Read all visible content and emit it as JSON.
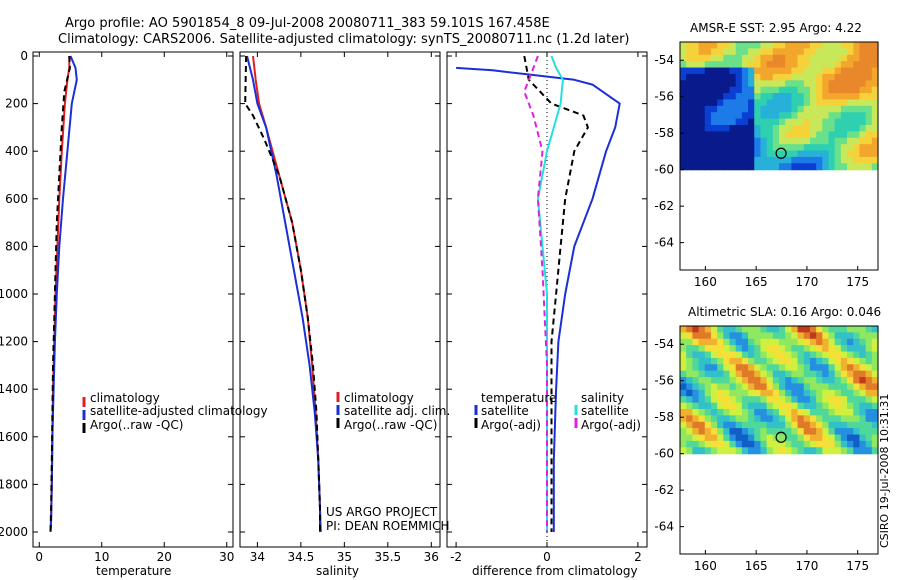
{
  "header": {
    "title_line1": "Argo profile: AO 5901854_8 09-Jul-2008 20080711_383 59.101S 167.458E",
    "title_line2": "Climatology: CARS2006. Satellite-adjusted climatology: synTS_20080711.nc (1.2d later)"
  },
  "colors": {
    "climatology": "#e02020",
    "satellite": "#1a2fd6",
    "argo": "#000000",
    "sat_salinity": "#22e0e0",
    "argo_salinity": "#e020e0"
  },
  "chart_data": [
    {
      "type": "line",
      "name": "temperature-panel",
      "xlabel": "temperature",
      "xlim": [
        -1,
        31
      ],
      "ylim": [
        2050,
        0
      ],
      "xticks": [
        "0",
        "10",
        "20",
        "30"
      ],
      "yticks": [
        "0",
        "200",
        "400",
        "600",
        "800",
        "1000",
        "1200",
        "1400",
        "1600",
        "1800",
        "2000"
      ],
      "legend": [
        "climatology",
        "satellite-adjusted climatology",
        "Argo(..raw -QC)"
      ],
      "series": [
        {
          "name": "climatology",
          "x": [
            4.8,
            4.8,
            4.5,
            4.1,
            3.6,
            3.2,
            2.9,
            2.6,
            2.4,
            2.2,
            2.1,
            2.0,
            1.9,
            1.8
          ],
          "y": [
            0,
            50,
            100,
            200,
            400,
            600,
            800,
            1000,
            1200,
            1400,
            1600,
            1800,
            1950,
            2000
          ]
        },
        {
          "name": "satellite",
          "x": [
            5.0,
            5.8,
            6.0,
            5.2,
            4.5,
            3.8,
            3.2,
            2.8,
            2.5,
            2.3,
            2.1,
            2.0,
            1.9,
            1.8
          ],
          "y": [
            0,
            50,
            100,
            200,
            400,
            600,
            800,
            1000,
            1200,
            1400,
            1600,
            1800,
            1950,
            2000
          ]
        },
        {
          "name": "argo",
          "x": [
            4.8,
            4.9,
            4.0,
            3.6,
            3.2,
            2.8,
            2.6,
            2.4,
            2.2,
            2.1,
            2.0,
            1.9,
            1.8
          ],
          "y": [
            0,
            50,
            150,
            300,
            500,
            700,
            900,
            1100,
            1300,
            1500,
            1700,
            1900,
            2000
          ]
        }
      ]
    },
    {
      "type": "line",
      "name": "salinity-panel",
      "xlabel": "salinity",
      "xlim": [
        33.8,
        36.1
      ],
      "ylim": [
        2050,
        0
      ],
      "xticks": [
        "34",
        "34.5",
        "35",
        "35.5",
        "36"
      ],
      "legend": [
        "climatology",
        "satellite adj. clim.",
        "Argo(..raw -QC)"
      ],
      "annotation": [
        "US ARGO PROJECT",
        "PI: DEAN ROEMMICH"
      ],
      "series": [
        {
          "name": "climatology",
          "x": [
            33.95,
            33.98,
            34.02,
            34.1,
            34.25,
            34.4,
            34.5,
            34.58,
            34.63,
            34.67,
            34.7,
            34.72,
            34.73
          ],
          "y": [
            0,
            100,
            200,
            300,
            500,
            700,
            900,
            1100,
            1300,
            1500,
            1700,
            1900,
            2000
          ]
        },
        {
          "name": "satellite",
          "x": [
            33.88,
            33.95,
            34.0,
            34.1,
            34.22,
            34.32,
            34.42,
            34.52,
            34.6,
            34.66,
            34.7,
            34.72,
            34.72
          ],
          "y": [
            0,
            100,
            200,
            300,
            500,
            700,
            900,
            1100,
            1300,
            1500,
            1700,
            1900,
            2000
          ]
        },
        {
          "name": "argo",
          "x": [
            33.87,
            33.86,
            33.95,
            34.08,
            34.25,
            34.4,
            34.5,
            34.58,
            34.64,
            34.68,
            34.7,
            34.72,
            34.72
          ],
          "y": [
            0,
            200,
            250,
            350,
            500,
            700,
            900,
            1100,
            1300,
            1500,
            1700,
            1900,
            2000
          ]
        }
      ]
    },
    {
      "type": "line",
      "name": "difference-panel",
      "xlabel": "difference from climatology",
      "xlim": [
        -2.2,
        2.2
      ],
      "ylim": [
        2050,
        0
      ],
      "xticks": [
        "-2",
        "0",
        "2"
      ],
      "legend_groups": [
        {
          "heading": "temperature",
          "items": [
            "satellite",
            "Argo(-adj)"
          ]
        },
        {
          "heading": "salinity",
          "items": [
            "satellite",
            "Argo(-adj)"
          ]
        }
      ],
      "series": [
        {
          "name": "temperature satellite",
          "x": [
            -2.0,
            -1.2,
            -0.3,
            0.6,
            1.0,
            1.6,
            1.5,
            1.3,
            1.0,
            0.6,
            0.4,
            0.25,
            0.2,
            0.15,
            0.15
          ],
          "y": [
            50,
            60,
            80,
            100,
            120,
            200,
            300,
            400,
            600,
            800,
            1000,
            1200,
            1400,
            1700,
            2000
          ]
        },
        {
          "name": "temperature argo",
          "x": [
            -0.5,
            -0.4,
            0.1,
            0.8,
            0.9,
            0.6,
            0.4,
            0.3,
            0.2,
            0.1,
            0.1,
            0.1
          ],
          "y": [
            0,
            100,
            200,
            250,
            300,
            400,
            600,
            800,
            1000,
            1200,
            1500,
            2000
          ]
        },
        {
          "name": "salinity satellite",
          "x": [
            0.1,
            0.2,
            0.35,
            0.3,
            0.0,
            -0.2,
            -0.1,
            0.0,
            0.0,
            0.0,
            0.0
          ],
          "y": [
            0,
            50,
            100,
            200,
            400,
            600,
            800,
            1000,
            1300,
            1600,
            2000
          ]
        },
        {
          "name": "salinity argo",
          "x": [
            -0.2,
            -0.3,
            -0.5,
            -0.3,
            -0.1,
            -0.2,
            -0.1,
            0.0,
            0.0
          ],
          "y": [
            0,
            50,
            150,
            250,
            400,
            600,
            900,
            1300,
            2000
          ]
        }
      ]
    },
    {
      "type": "heatmap",
      "name": "sst-map",
      "title": "AMSR-E SST: 2.95 Argo: 4.22",
      "xticks": [
        "160",
        "165",
        "170",
        "175"
      ],
      "yticks": [
        "-54",
        "-56",
        "-58",
        "-60",
        "-62",
        "-64"
      ],
      "xlim": [
        157.5,
        177
      ],
      "ylim": [
        -65.5,
        -53
      ],
      "marker": {
        "lon": 167.458,
        "lat": -59.101
      }
    },
    {
      "type": "heatmap",
      "name": "sla-map",
      "title": "Altimetric SLA: 0.16 Argo: 0.046",
      "xticks": [
        "160",
        "165",
        "170",
        "175"
      ],
      "yticks": [
        "-54",
        "-56",
        "-58",
        "-60",
        "-62",
        "-64"
      ],
      "xlim": [
        157.5,
        177
      ],
      "ylim": [
        -65.5,
        -53
      ],
      "marker": {
        "lon": 167.458,
        "lat": -59.101
      }
    }
  ],
  "footer": {
    "credit": "CSIRO 19-Jul-2008 10:31:31"
  }
}
